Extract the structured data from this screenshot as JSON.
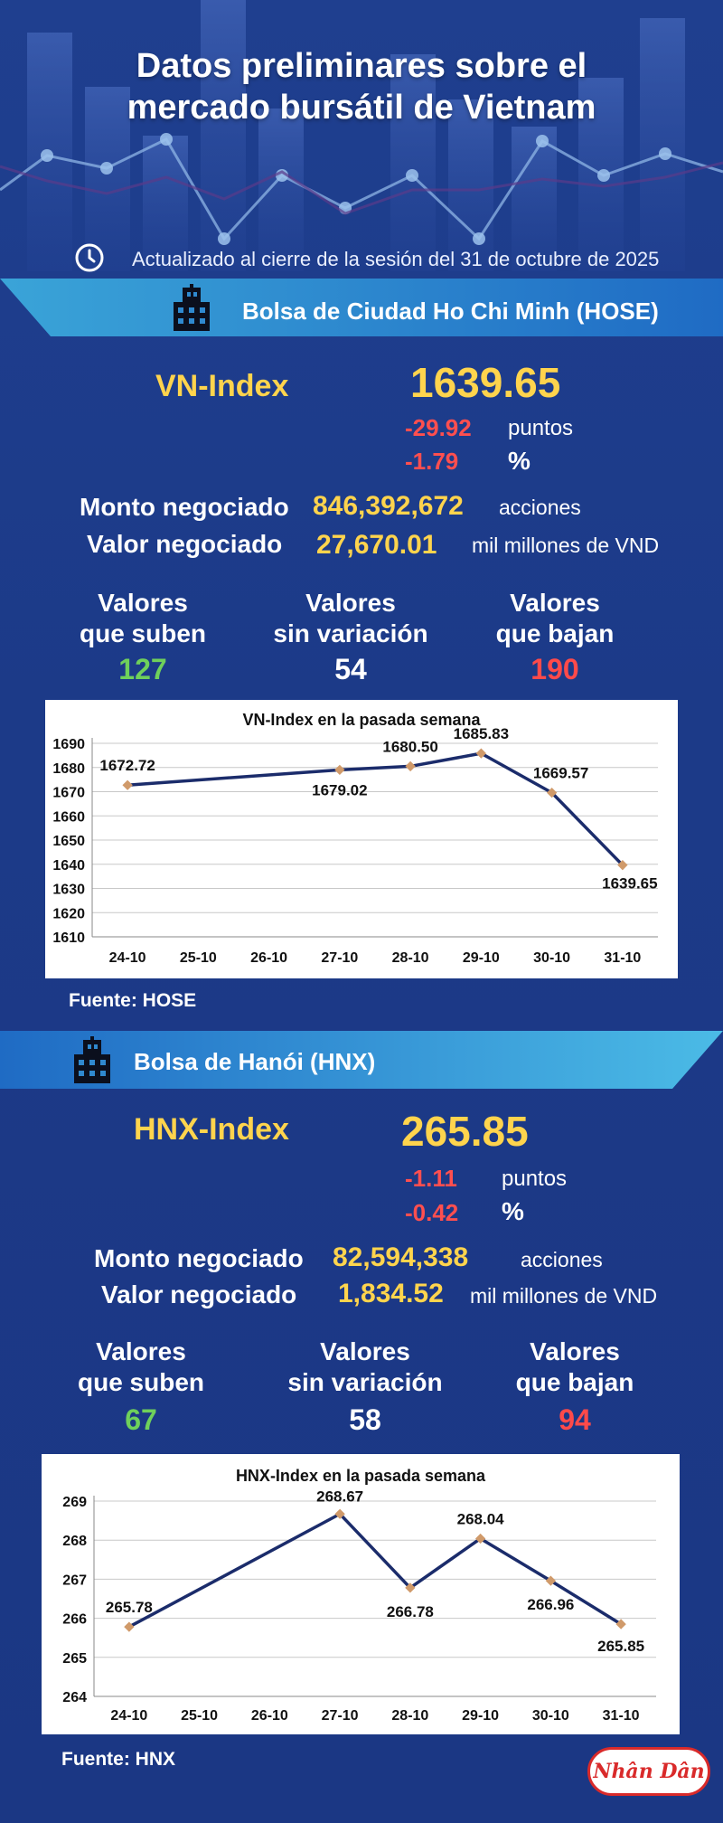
{
  "header": {
    "title_line1": "Datos preliminares sobre el",
    "title_line2": "mercado bursátil de Vietnam",
    "updated": "Actualizado al cierre de la sesión del 31 de octubre de 2025",
    "clock_icon": "clock-icon"
  },
  "colors": {
    "accent": "#ffd44d",
    "up": "#6fd05b",
    "down": "#ff4a4a",
    "line": "#1b2c6b",
    "marker": "#d09a6a"
  },
  "hose": {
    "banner": "Bolsa de Ciudad Ho Chi Minh (HOSE)",
    "index_name": "VN-Index",
    "index_value": "1639.65",
    "change_points": "-29.92",
    "points_label": "puntos",
    "change_pct": "-1.79",
    "pct_label": "%",
    "volume_label": "Monto negociado",
    "volume": "846,392,672",
    "volume_unit": "acciones",
    "value_label": "Valor negociado",
    "value": "27,670.01",
    "value_unit": "mil millones de VND",
    "up_label_1": "Valores",
    "up_label_2": "que suben",
    "up_count": "127",
    "flat_label_1": "Valores",
    "flat_label_2": "sin variación",
    "flat_count": "54",
    "down_label_1": "Valores",
    "down_label_2": "que bajan",
    "down_count": "190",
    "source": "Fuente: HOSE"
  },
  "hnx": {
    "banner": "Bolsa de Hanói (HNX)",
    "index_name": "HNX-Index",
    "index_value": "265.85",
    "change_points": "-1.11",
    "points_label": "puntos",
    "change_pct": "-0.42",
    "pct_label": "%",
    "volume_label": "Monto negociado",
    "volume": "82,594,338",
    "volume_unit": "acciones",
    "value_label": "Valor negociado",
    "value": "1,834.52",
    "value_unit": "mil millones de VND",
    "up_label_1": "Valores",
    "up_label_2": "que suben",
    "up_count": "67",
    "flat_label_1": "Valores",
    "flat_label_2": "sin variación",
    "flat_count": "58",
    "down_label_1": "Valores",
    "down_label_2": "que bajan",
    "down_count": "94",
    "source": "Fuente:  HNX"
  },
  "logo": {
    "text": "Nhân Dân"
  },
  "chart_data": [
    {
      "type": "line",
      "title": "VN-Index en la pasada semana",
      "categories": [
        "24-10",
        "25-10",
        "26-10",
        "27-10",
        "28-10",
        "29-10",
        "30-10",
        "31-10"
      ],
      "points": [
        {
          "category": "24-10",
          "value": 1672.72,
          "label": "1672.72"
        },
        {
          "category": "27-10",
          "value": 1679.02,
          "label": "1679.02"
        },
        {
          "category": "28-10",
          "value": 1680.5,
          "label": "1680.50"
        },
        {
          "category": "29-10",
          "value": 1685.83,
          "label": "1685.83"
        },
        {
          "category": "30-10",
          "value": 1669.57,
          "label": "1669.57"
        },
        {
          "category": "31-10",
          "value": 1639.65,
          "label": "1639.65"
        }
      ],
      "ylim": [
        1610,
        1690
      ],
      "yticks": [
        "1690",
        "1680",
        "1670",
        "1660",
        "1650",
        "1640",
        "1630",
        "1620",
        "1610"
      ],
      "grid": true,
      "legend": "none"
    },
    {
      "type": "line",
      "title": "HNX-Index en la pasada semana",
      "categories": [
        "24-10",
        "25-10",
        "26-10",
        "27-10",
        "28-10",
        "29-10",
        "30-10",
        "31-10"
      ],
      "points": [
        {
          "category": "24-10",
          "value": 265.78,
          "label": "265.78"
        },
        {
          "category": "27-10",
          "value": 268.67,
          "label": "268.67"
        },
        {
          "category": "28-10",
          "value": 266.78,
          "label": "266.78"
        },
        {
          "category": "29-10",
          "value": 268.04,
          "label": "268.04"
        },
        {
          "category": "30-10",
          "value": 266.96,
          "label": "266.96"
        },
        {
          "category": "31-10",
          "value": 265.85,
          "label": "265.85"
        }
      ],
      "ylim": [
        264,
        269
      ],
      "yticks": [
        "269",
        "268",
        "267",
        "266",
        "265",
        "264"
      ],
      "grid": true,
      "legend": "none"
    }
  ]
}
